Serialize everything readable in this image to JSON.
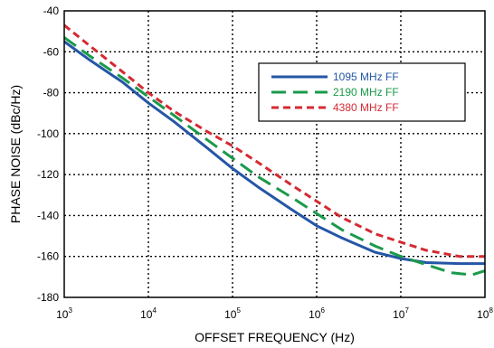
{
  "chart_data": {
    "type": "line",
    "xlabel": "OFFSET FREQUENCY (Hz)",
    "ylabel": "PHASE NOISE (dBc/Hz)",
    "x_scale": "log",
    "xlim": [
      1000,
      100000000
    ],
    "ylim": [
      -180,
      -40
    ],
    "x_ticks": [
      {
        "base": "10",
        "exp": "3",
        "value": 1000
      },
      {
        "base": "10",
        "exp": "4",
        "value": 10000
      },
      {
        "base": "10",
        "exp": "5",
        "value": 100000
      },
      {
        "base": "10",
        "exp": "6",
        "value": 1000000
      },
      {
        "base": "10",
        "exp": "7",
        "value": 10000000
      },
      {
        "base": "10",
        "exp": "8",
        "value": 100000000
      }
    ],
    "y_ticks": [
      "-40",
      "-60",
      "-80",
      "-100",
      "-120",
      "-140",
      "-160",
      "-180"
    ],
    "grid": true,
    "legend_position": "upper-right",
    "series": [
      {
        "name": "1095 MHz FF",
        "color": "#2456a6",
        "dash": "solid",
        "points": [
          [
            1000,
            -55
          ],
          [
            2000,
            -64
          ],
          [
            5000,
            -75
          ],
          [
            10000,
            -85
          ],
          [
            20000,
            -94
          ],
          [
            50000,
            -107
          ],
          [
            100000,
            -117
          ],
          [
            200000,
            -126
          ],
          [
            500000,
            -137
          ],
          [
            1000000,
            -145
          ],
          [
            2000000,
            -151
          ],
          [
            5000000,
            -158
          ],
          [
            10000000,
            -161
          ],
          [
            20000000,
            -163
          ],
          [
            50000000,
            -163.5
          ],
          [
            100000000,
            -163.5
          ]
        ]
      },
      {
        "name": "2190 MHz FF",
        "color": "#1a9a4a",
        "dash": "long-dash",
        "points": [
          [
            1000,
            -53
          ],
          [
            2000,
            -62
          ],
          [
            5000,
            -73
          ],
          [
            10000,
            -82
          ],
          [
            20000,
            -91
          ],
          [
            50000,
            -103
          ],
          [
            100000,
            -112
          ],
          [
            200000,
            -121
          ],
          [
            500000,
            -131
          ],
          [
            1000000,
            -139
          ],
          [
            2000000,
            -147
          ],
          [
            5000000,
            -155
          ],
          [
            10000000,
            -160
          ],
          [
            20000000,
            -164
          ],
          [
            40000000,
            -168
          ],
          [
            70000000,
            -169
          ],
          [
            100000000,
            -167
          ]
        ]
      },
      {
        "name": "4380 MHz FF",
        "color": "#d42a32",
        "dash": "short-dash",
        "points": [
          [
            1000,
            -47
          ],
          [
            2000,
            -57
          ],
          [
            5000,
            -70
          ],
          [
            10000,
            -80
          ],
          [
            20000,
            -89
          ],
          [
            50000,
            -99
          ],
          [
            100000,
            -106
          ],
          [
            200000,
            -114
          ],
          [
            500000,
            -125
          ],
          [
            1000000,
            -133
          ],
          [
            2000000,
            -141
          ],
          [
            5000000,
            -149
          ],
          [
            10000000,
            -153
          ],
          [
            20000000,
            -157
          ],
          [
            50000000,
            -160
          ],
          [
            100000000,
            -160
          ]
        ]
      }
    ]
  }
}
